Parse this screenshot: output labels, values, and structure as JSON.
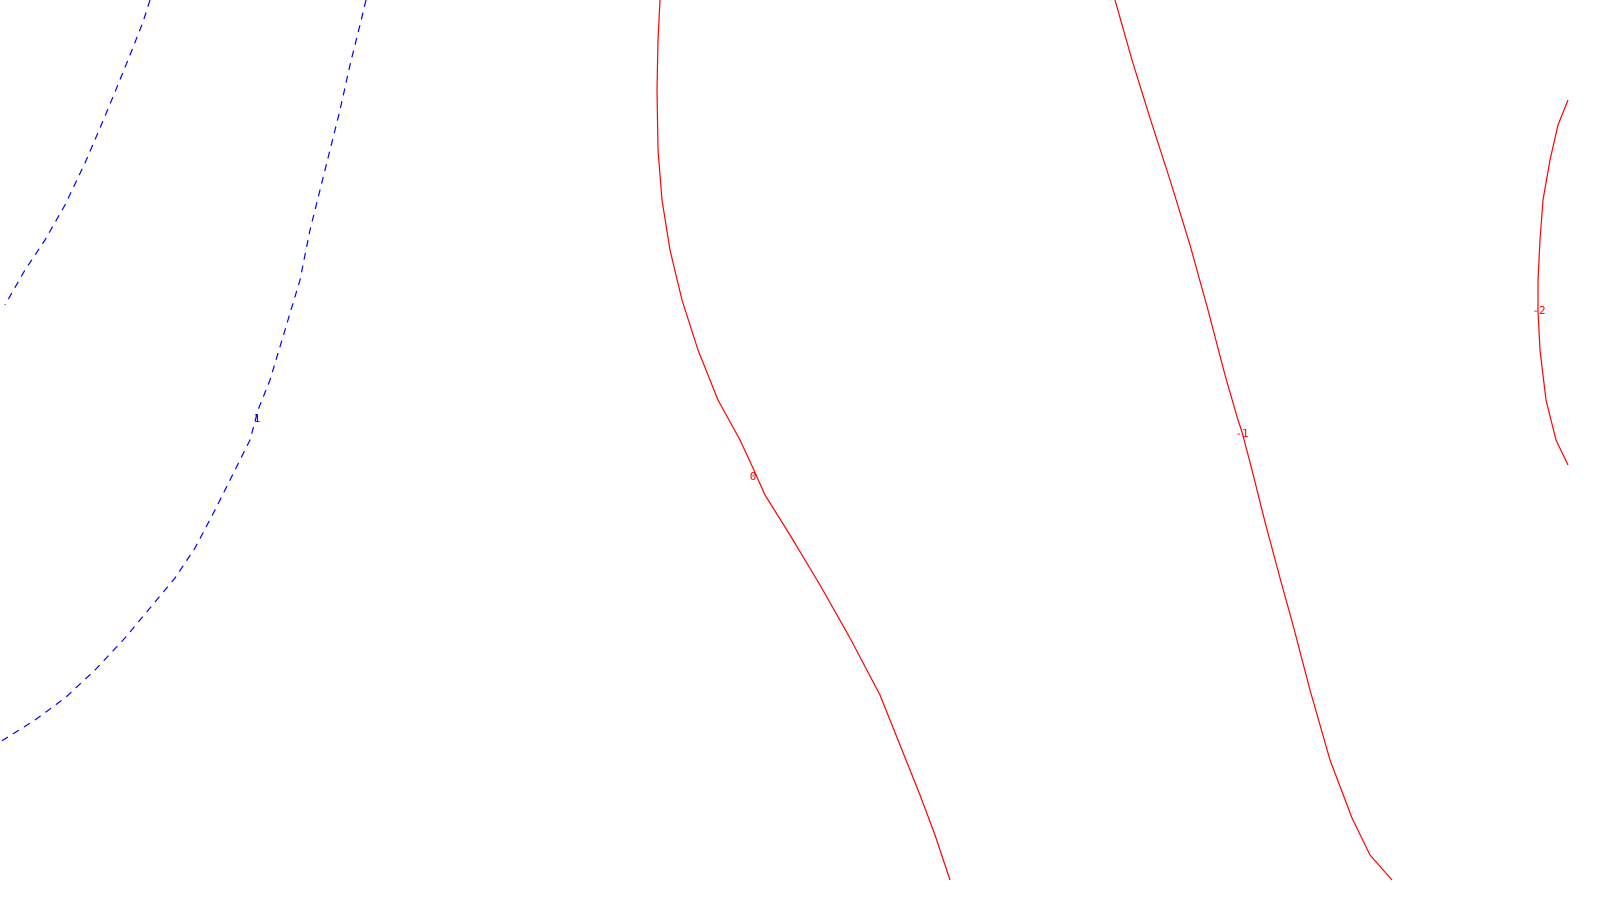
{
  "chart_data": {
    "type": "contour",
    "title": "",
    "xlabel": "",
    "ylabel": "",
    "grid": false,
    "styles": {
      "positive": {
        "color": "#0000ff",
        "dash": "dashed"
      },
      "nonpositive": {
        "color": "#ff0000",
        "dash": "solid"
      }
    },
    "levels": [
      {
        "id": "level-1-outer",
        "value": 1,
        "label": "",
        "style": "positive"
      },
      {
        "id": "level-1-inner",
        "value": 1,
        "label": "1",
        "style": "positive"
      },
      {
        "id": "level-0",
        "value": 0,
        "label": "0",
        "style": "nonpositive"
      },
      {
        "id": "level-minus-1",
        "value": -1,
        "label": "-1",
        "style": "nonpositive"
      },
      {
        "id": "level-minus-2",
        "value": -2,
        "label": "-2",
        "style": "nonpositive"
      }
    ]
  }
}
